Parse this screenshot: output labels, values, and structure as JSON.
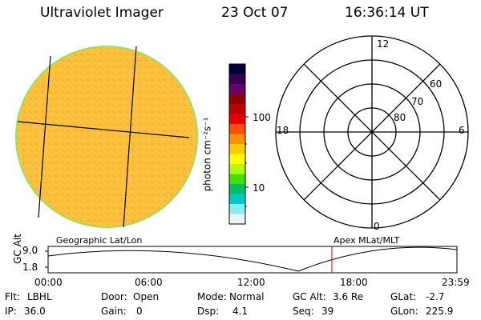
{
  "header": {
    "title": "Ultraviolet Imager",
    "date": "23 Oct 07",
    "time": "16:36:14 UT"
  },
  "colorbar": {
    "unit_label": "photon cm⁻²s⁻¹",
    "tick_labels": [
      "100",
      "10"
    ],
    "colors": [
      "#000040",
      "#3a0050",
      "#6a006a",
      "#900000",
      "#c00000",
      "#e80000",
      "#ff5000",
      "#ff9000",
      "#ffc800",
      "#ffff00",
      "#b0ff00",
      "#40e000",
      "#00c060",
      "#00c8c8",
      "#90e8f0",
      "#e8f4f4"
    ]
  },
  "polar_plot": {
    "mlt_labels": {
      "top": "12",
      "right": "6",
      "bottom": "0",
      "left": "18"
    },
    "lat_labels": [
      "60",
      "70",
      "80"
    ]
  },
  "timeline": {
    "ylabel": "GC Alt",
    "y_ticks": [
      "9.0",
      "1.8"
    ],
    "left_caption": "Geographic Lat/Lon",
    "right_caption": "Apex MLat/MLT",
    "x_ticks": [
      "00:00",
      "06:00",
      "12:00",
      "18:00",
      "23:59"
    ],
    "current_time_fraction": 0.694
  },
  "footer": {
    "row1": [
      {
        "label": "Flt:",
        "value": "LBHL"
      },
      {
        "label": "Door:",
        "value": "Open"
      },
      {
        "label": "Mode:",
        "value": "Normal"
      },
      {
        "label": "GC Alt:",
        "value": "3.6 Re"
      },
      {
        "label": "GLat:",
        "value": "-2.7"
      }
    ],
    "row2": [
      {
        "label": "IP:",
        "value": "36.0"
      },
      {
        "label": "Gain:",
        "value": "0"
      },
      {
        "label": "Dsp:",
        "value": "4.1"
      },
      {
        "label": "Seq:",
        "value": "39"
      },
      {
        "label": "GLon:",
        "value": "225.9"
      }
    ]
  }
}
